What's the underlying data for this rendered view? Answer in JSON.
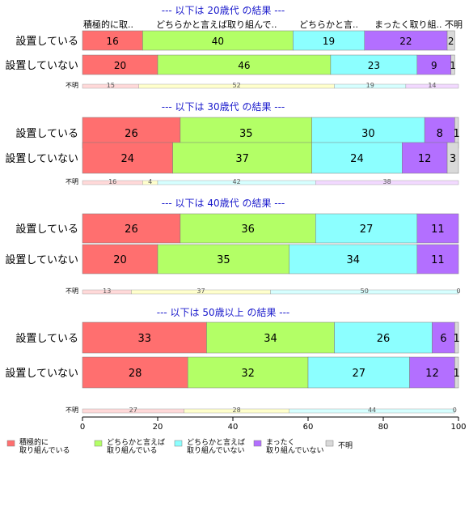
{
  "chart_data": {
    "type": "bar",
    "orientation": "horizontal",
    "stacked": true,
    "xlim": [
      0,
      100
    ],
    "x_ticks": [
      "0",
      "20",
      "40",
      "60",
      "80",
      "100"
    ],
    "header_labels": [
      "積極的に取..",
      "どちらかと言えば取り組んで..",
      "どちらかと言..",
      "まったく取り組..",
      "不明"
    ],
    "legend": [
      {
        "line1": "積極的に",
        "line2": "取り組んでいる",
        "color": "#ff6f6f"
      },
      {
        "line1": "どちらかと言えば",
        "line2": "取り組んでいる",
        "color": "#b3ff66"
      },
      {
        "line1": "どちらかと言えば",
        "line2": "取り組んでいない",
        "color": "#8cffff"
      },
      {
        "line1": "まったく",
        "line2": "取り組んでいない",
        "color": "#b36fff"
      },
      {
        "line1": "不明",
        "line2": "",
        "color": "#d9d9d9"
      }
    ],
    "small_bar_label": "不明",
    "small_bar_colors": [
      "#ffd9d9",
      "#ffffcc",
      "#d6ffff",
      "#f2d9ff"
    ],
    "groups": [
      {
        "title": "--- 以下は 20歳代 の結果 ---",
        "rows": [
          {
            "label": "設置している",
            "values": [
              16,
              40,
              19,
              22,
              2
            ]
          },
          {
            "label": "設置していない",
            "values": [
              20,
              46,
              23,
              9,
              1
            ]
          }
        ],
        "unknown": [
          15,
          52,
          19,
          14
        ]
      },
      {
        "title": "--- 以下は 30歳代 の結果 ---",
        "rows": [
          {
            "label": "設置している",
            "values": [
              26,
              35,
              30,
              8,
              1
            ]
          },
          {
            "label": "設置していない",
            "values": [
              24,
              37,
              24,
              12,
              3
            ]
          }
        ],
        "unknown": [
          16,
          4,
          42,
          38
        ]
      },
      {
        "title": "--- 以下は 40歳代 の結果 ---",
        "rows": [
          {
            "label": "設置している",
            "values": [
              26,
              36,
              27,
              11,
              0
            ]
          },
          {
            "label": "設置していない",
            "values": [
              20,
              35,
              34,
              11,
              0
            ]
          }
        ],
        "unknown": [
          13,
          37,
          50,
          0
        ]
      },
      {
        "title": "--- 以下は 50歳以上 の結果 ---",
        "rows": [
          {
            "label": "設置している",
            "values": [
              33,
              34,
              26,
              6,
              1
            ]
          },
          {
            "label": "設置していない",
            "values": [
              28,
              32,
              27,
              12,
              1
            ]
          }
        ],
        "unknown": [
          27,
          28,
          44,
          0
        ]
      }
    ]
  }
}
